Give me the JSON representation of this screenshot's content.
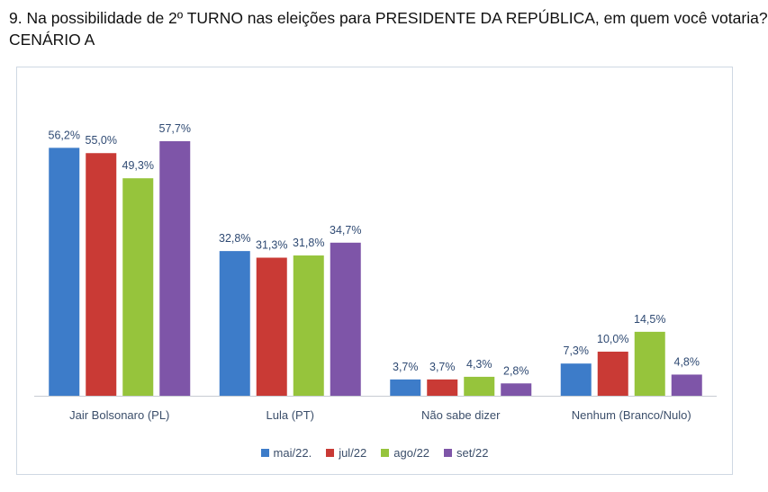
{
  "title_line1": "9. Na possibilidade de 2º TURNO nas eleições para PRESIDENTE DA REPÚBLICA, em quem você votaria?",
  "title_line2": "CENÁRIO A",
  "chart_data": {
    "type": "bar",
    "categories": [
      "Jair Bolsonaro (PL)",
      "Lula (PT)",
      "Não sabe dizer",
      "Nenhum (Branco/Nulo)"
    ],
    "series": [
      {
        "name": "mai/22.",
        "color": "#3d7cc9",
        "values": [
          56.2,
          32.8,
          3.7,
          7.3
        ],
        "labels": [
          "56,2%",
          "32,8%",
          "3,7%",
          "7,3%"
        ]
      },
      {
        "name": "jul/22",
        "color": "#c93a35",
        "values": [
          55.0,
          31.3,
          3.7,
          10.0
        ],
        "labels": [
          "55,0%",
          "31,3%",
          "3,7%",
          "10,0%"
        ]
      },
      {
        "name": "ago/22",
        "color": "#96c43c",
        "values": [
          49.3,
          31.8,
          4.3,
          14.5
        ],
        "labels": [
          "49,3%",
          "31,8%",
          "4,3%",
          "14,5%"
        ]
      },
      {
        "name": "set/22",
        "color": "#7e55a8",
        "values": [
          57.7,
          34.7,
          2.8,
          4.8
        ],
        "labels": [
          "57,7%",
          "34,7%",
          "2,8%",
          "4,8%"
        ]
      }
    ],
    "ylim": [
      0,
      57.7
    ],
    "grid": false,
    "legend_position": "bottom"
  }
}
